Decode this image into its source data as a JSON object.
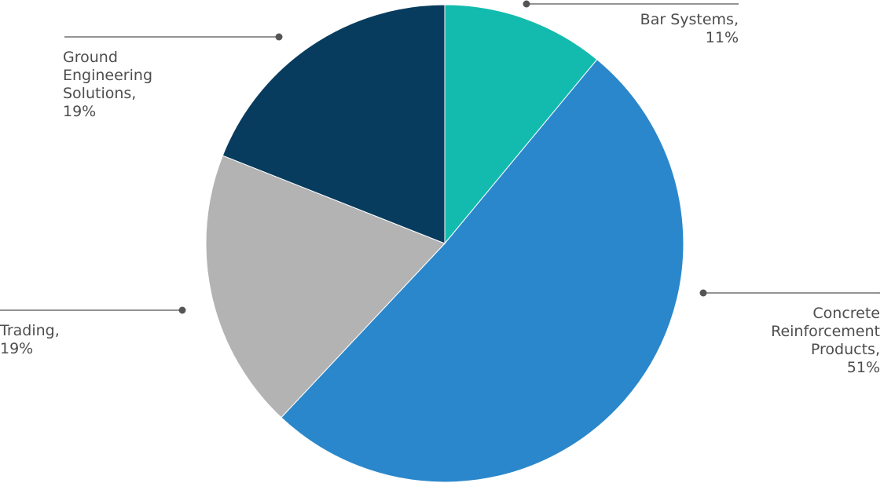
{
  "chart_data": {
    "type": "pie",
    "title": "",
    "slices": [
      {
        "label": "Bar Systems",
        "value": 11,
        "value_text": "11%",
        "color": "#12bbad"
      },
      {
        "label": "Concrete Reinforcement Products",
        "value": 51,
        "value_text": "51%",
        "color": "#2a87cb"
      },
      {
        "label": "Trading",
        "value": 19,
        "value_text": "19%",
        "color": "#b3b3b3"
      },
      {
        "label": "Ground Engineering Solutions",
        "value": 19,
        "value_text": "19%",
        "color": "#083c5e"
      }
    ],
    "legend": "none",
    "data_labels": "outside with leader lines"
  }
}
